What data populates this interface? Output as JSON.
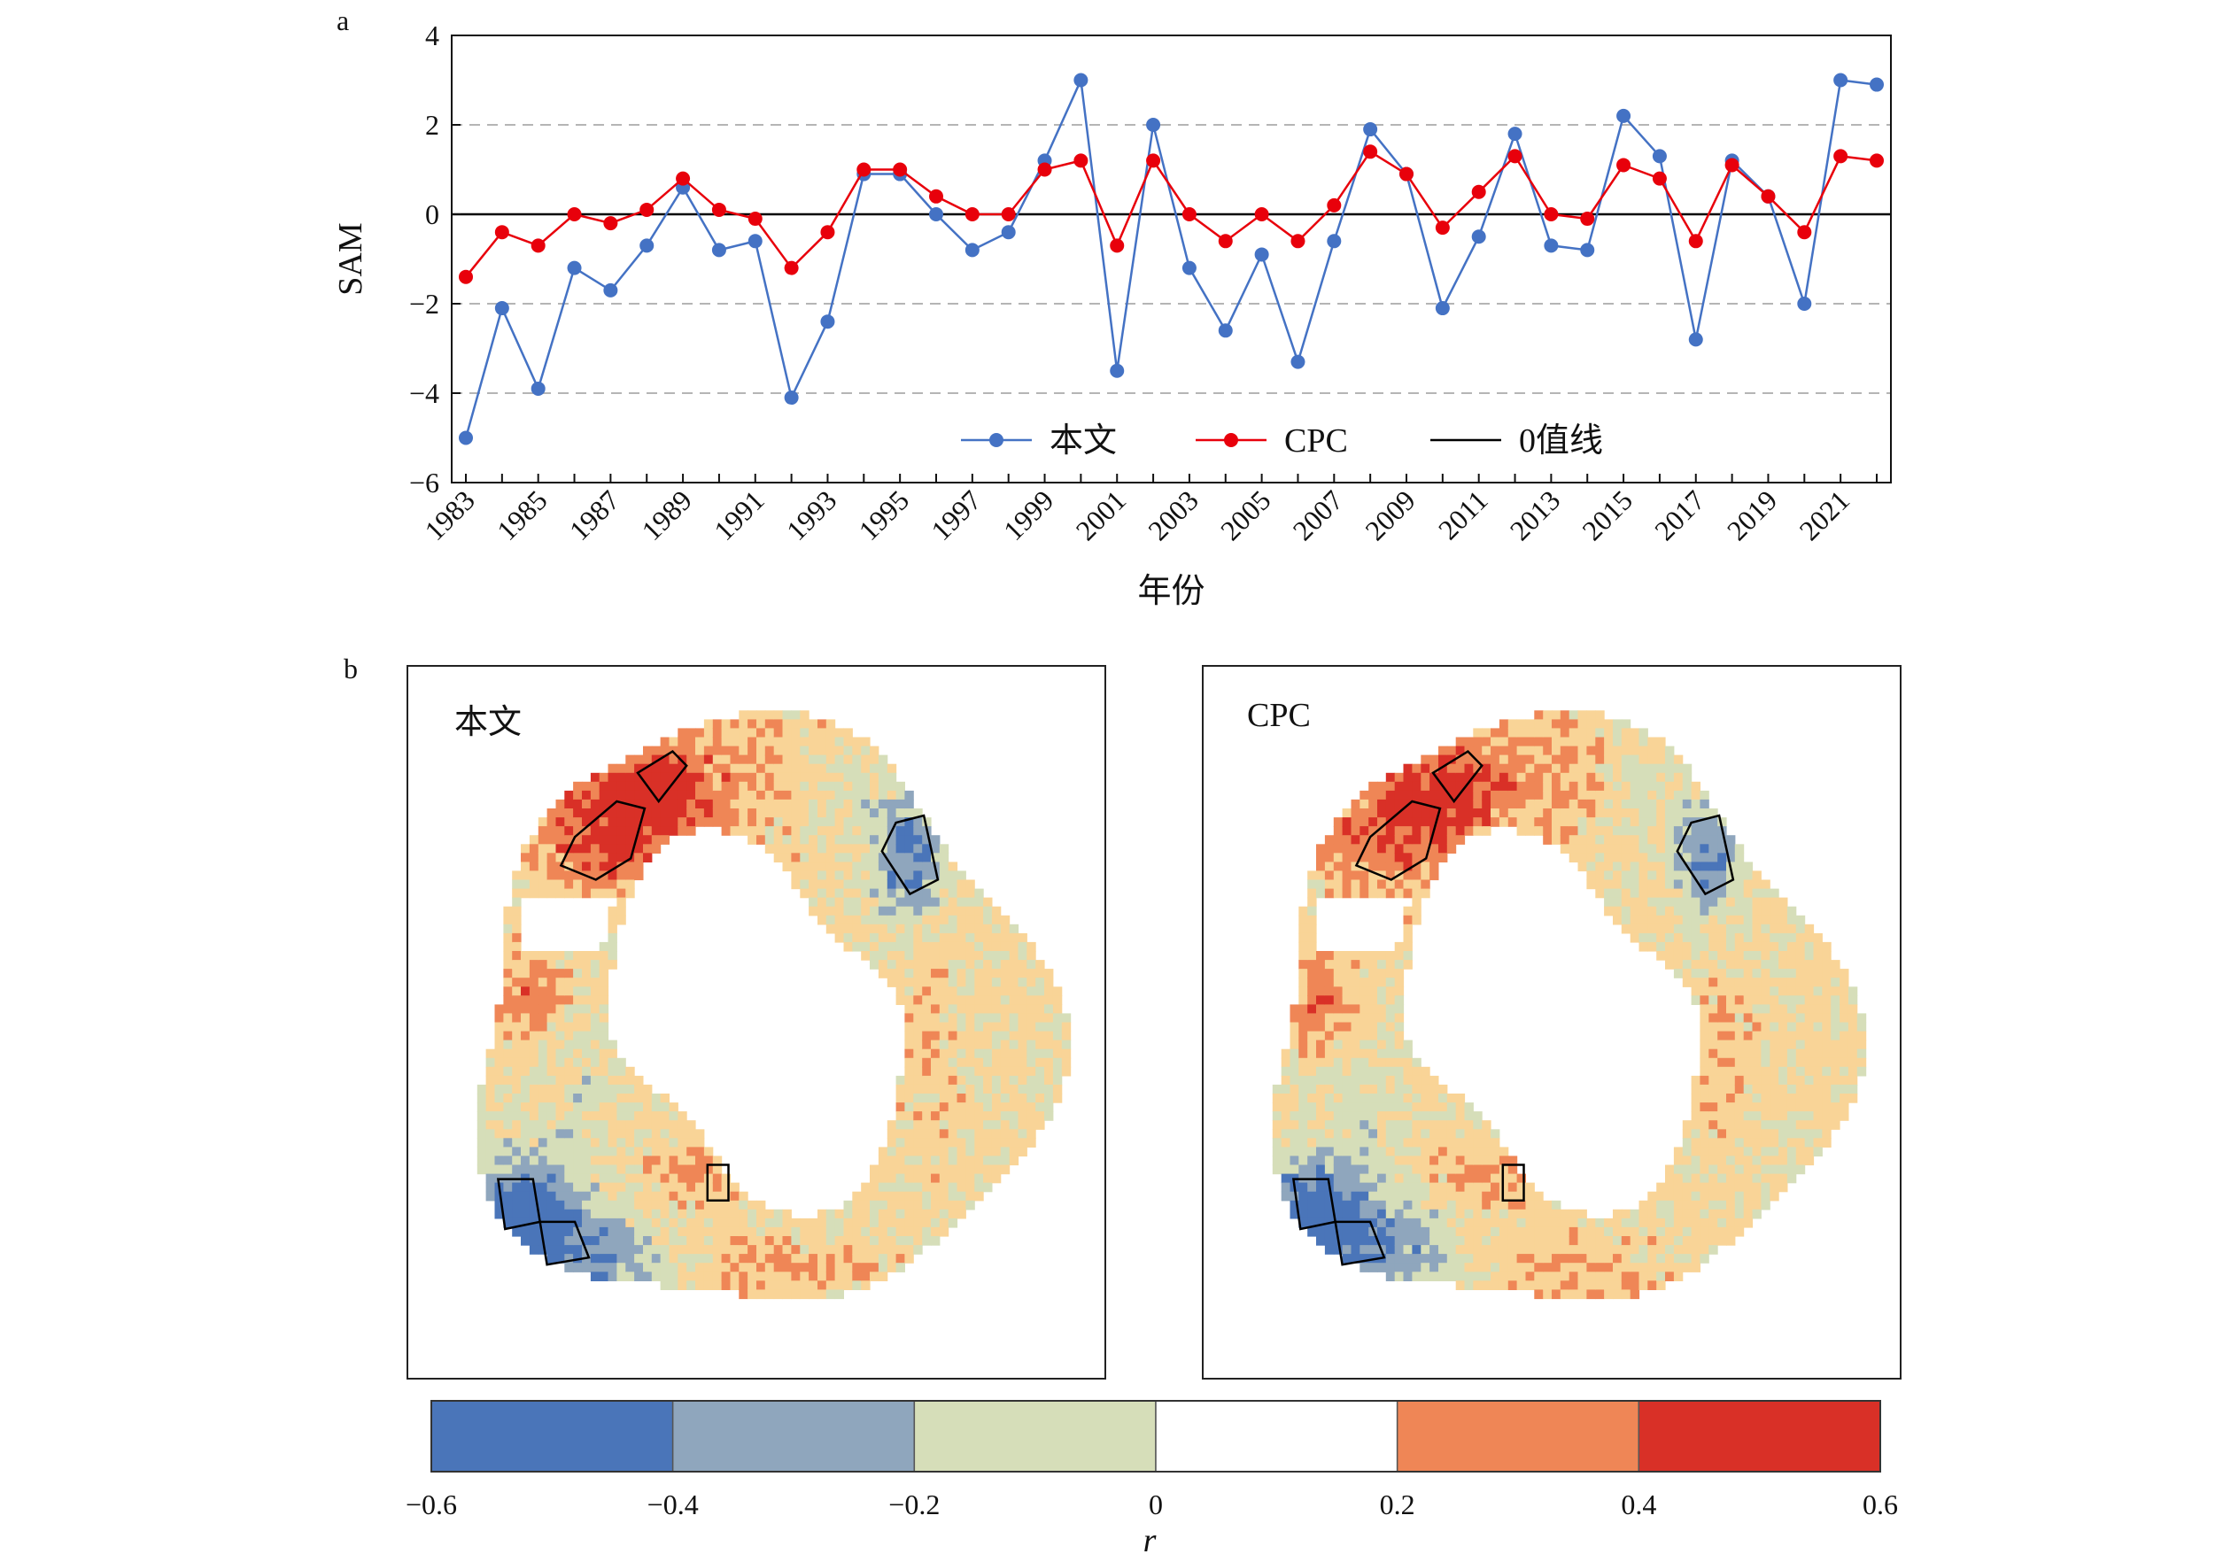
{
  "chart_data": [
    {
      "panel": "a",
      "type": "line",
      "xlabel": "年份",
      "ylabel": "SAM",
      "ylim": [
        -6,
        4
      ],
      "yticks": [
        -6,
        -4,
        -2,
        0,
        2,
        4
      ],
      "grid": "dashed horizontal at ±2 and ±4",
      "zero_line_label": "0值线",
      "x": [
        1983,
        1984,
        1985,
        1986,
        1987,
        1988,
        1989,
        1990,
        1991,
        1992,
        1993,
        1994,
        1995,
        1996,
        1997,
        1998,
        1999,
        2000,
        2001,
        2002,
        2003,
        2004,
        2005,
        2006,
        2007,
        2008,
        2009,
        2010,
        2011,
        2012,
        2013,
        2014,
        2015,
        2016,
        2017,
        2018,
        2019,
        2020,
        2021,
        2022
      ],
      "xtick_labels": [
        "1983",
        "1985",
        "1987",
        "1989",
        "1991",
        "1993",
        "1995",
        "1997",
        "1999",
        "2001",
        "2003",
        "2005",
        "2007",
        "2009",
        "2011",
        "2013",
        "2015",
        "2017",
        "2019",
        "2021"
      ],
      "legend_position": "bottom-center",
      "series": [
        {
          "name": "本文",
          "color": "#4472c4",
          "values": [
            -5.0,
            -2.1,
            -3.9,
            -1.2,
            -1.7,
            -0.7,
            0.6,
            -0.8,
            -0.6,
            -4.1,
            -2.4,
            0.9,
            0.9,
            0.0,
            -0.8,
            -0.4,
            1.2,
            3.0,
            -3.5,
            2.0,
            -1.2,
            -2.6,
            -0.9,
            -3.3,
            -0.6,
            1.9,
            0.9,
            -2.1,
            -0.5,
            1.8,
            -0.7,
            -0.8,
            2.2,
            1.3,
            -2.8,
            1.2,
            0.4,
            -2.0,
            3.0,
            2.9
          ]
        },
        {
          "name": "CPC",
          "color": "#e8000b",
          "values": [
            -1.4,
            -0.4,
            -0.7,
            0.0,
            -0.2,
            0.1,
            0.8,
            0.1,
            -0.1,
            -1.2,
            -0.4,
            1.0,
            1.0,
            0.4,
            0.0,
            0.0,
            1.0,
            1.2,
            -0.7,
            1.2,
            0.0,
            -0.6,
            0.0,
            -0.6,
            0.2,
            1.4,
            0.9,
            -0.3,
            0.5,
            1.3,
            0.0,
            -0.1,
            1.1,
            0.8,
            -0.6,
            1.1,
            0.4,
            -0.4,
            1.3,
            1.2
          ]
        }
      ]
    },
    {
      "panel": "b",
      "type": "heatmap",
      "maps": [
        {
          "title": "本文"
        },
        {
          "title": "CPC"
        }
      ],
      "colorbar": {
        "label": "r",
        "ticks": [
          "−0.6",
          "−0.4",
          "−0.2",
          "0",
          "0.2",
          "0.4",
          "0.6"
        ],
        "colors": [
          "#4a75b9",
          "#8fa6bd",
          "#d6deb9",
          "#ffffff",
          "#ef8656",
          "#d93027"
        ]
      }
    }
  ],
  "panel_labels": {
    "a": "a",
    "b": "b"
  }
}
